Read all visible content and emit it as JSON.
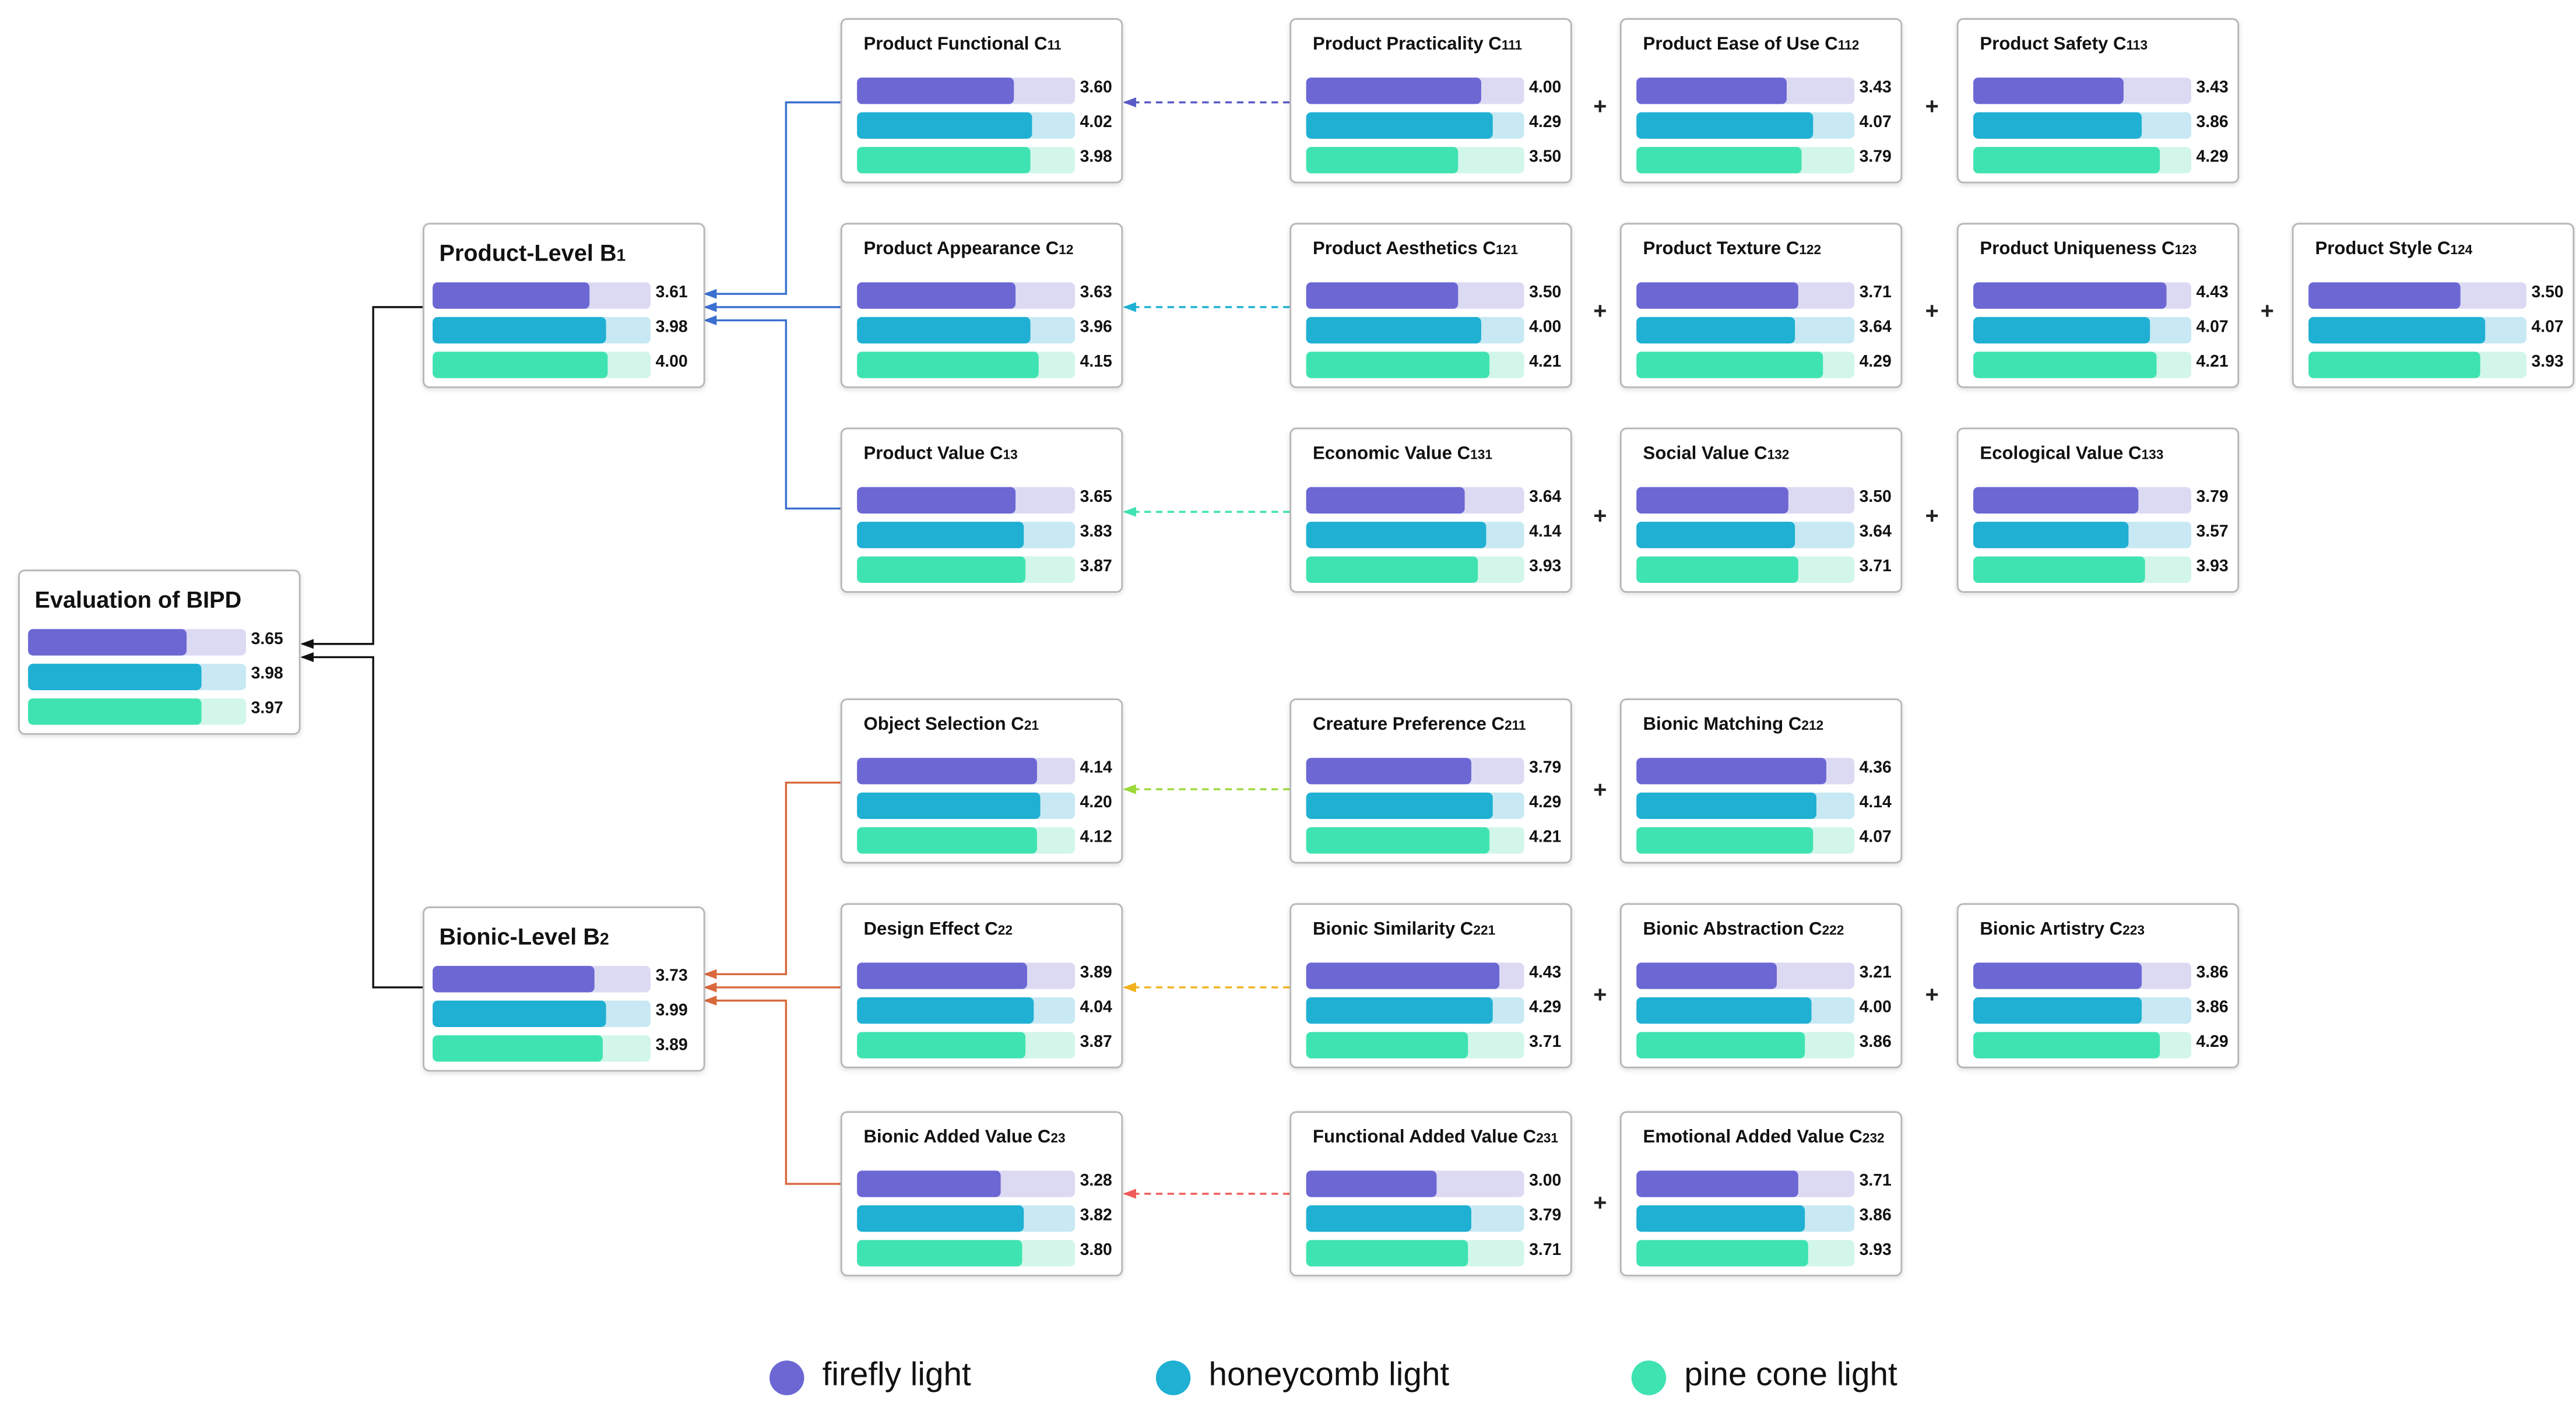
{
  "colors": {
    "firefly": "#6c67d3",
    "firefly_bg": "#dcdaf3",
    "honeycomb": "#1fb0d3",
    "honeycomb_bg": "#c8e9f3",
    "pinecone": "#3fe3b1",
    "pinecone_bg": "#d2f6ea",
    "blue_link": "#3b6fcf",
    "orange_link": "#d9683c",
    "black_link": "#111111",
    "arrow_c11": "#5a5ac8",
    "arrow_c12": "#1fb0d3",
    "arrow_c13": "#3fe3b1",
    "arrow_c21": "#9cd93a",
    "arrow_c22": "#f2b21c",
    "arrow_c23": "#ef5a5a"
  },
  "scale": {
    "max": 5.0
  },
  "legend": [
    {
      "key": "firefly",
      "label": "firefly light"
    },
    {
      "key": "honeycomb",
      "label": "honeycomb light"
    },
    {
      "key": "pinecone",
      "label": "pine cone light"
    }
  ],
  "nodes": {
    "A": {
      "name": "Evaluation of BIPD",
      "sub": "",
      "values": [
        3.65,
        3.98,
        3.97
      ]
    },
    "B1": {
      "name": "Product-Level B",
      "sub": "1",
      "values": [
        3.61,
        3.98,
        4.0
      ]
    },
    "B2": {
      "name": "Bionic-Level B",
      "sub": "2",
      "values": [
        3.73,
        3.99,
        3.89
      ]
    },
    "C11": {
      "name": "Product Functional C",
      "sub": "11",
      "values": [
        3.6,
        4.02,
        3.98
      ]
    },
    "C12": {
      "name": "Product Appearance C",
      "sub": "12",
      "values": [
        3.63,
        3.96,
        4.15
      ]
    },
    "C13": {
      "name": "Product Value C",
      "sub": "13",
      "values": [
        3.65,
        3.83,
        3.87
      ]
    },
    "C21": {
      "name": "Object Selection C",
      "sub": "21",
      "values": [
        4.14,
        4.2,
        4.12
      ]
    },
    "C22": {
      "name": "Design Effect C",
      "sub": "22",
      "values": [
        3.89,
        4.04,
        3.87
      ]
    },
    "C23": {
      "name": "Bionic Added Value C",
      "sub": "23",
      "values": [
        3.28,
        3.82,
        3.8
      ]
    },
    "C111": {
      "name": "Product Practicality C",
      "sub": "111",
      "values": [
        4.0,
        4.29,
        3.5
      ]
    },
    "C112": {
      "name": "Product Ease of Use C",
      "sub": "112",
      "values": [
        3.43,
        4.07,
        3.79
      ]
    },
    "C113": {
      "name": "Product Safety C",
      "sub": "113",
      "values": [
        3.43,
        3.86,
        4.29
      ]
    },
    "C121": {
      "name": "Product Aesthetics C",
      "sub": "121",
      "values": [
        3.5,
        4.0,
        4.21
      ]
    },
    "C122": {
      "name": "Product Texture C",
      "sub": "122",
      "values": [
        3.71,
        3.64,
        4.29
      ]
    },
    "C123": {
      "name": "Product Uniqueness C",
      "sub": "123",
      "values": [
        4.43,
        4.07,
        4.21
      ]
    },
    "C124": {
      "name": "Product Style C",
      "sub": "124",
      "values": [
        3.5,
        4.07,
        3.93
      ]
    },
    "C131": {
      "name": "Economic Value C",
      "sub": "131",
      "values": [
        3.64,
        4.14,
        3.93
      ]
    },
    "C132": {
      "name": "Social Value C",
      "sub": "132",
      "values": [
        3.5,
        3.64,
        3.71
      ]
    },
    "C133": {
      "name": "Ecological Value C",
      "sub": "133",
      "values": [
        3.79,
        3.57,
        3.93
      ]
    },
    "C211": {
      "name": "Creature Preference C",
      "sub": "211",
      "values": [
        3.79,
        4.29,
        4.21
      ]
    },
    "C212": {
      "name": "Bionic Matching C",
      "sub": "212",
      "values": [
        4.36,
        4.14,
        4.07
      ]
    },
    "C221": {
      "name": "Bionic Similarity C",
      "sub": "221",
      "values": [
        4.43,
        4.29,
        3.71
      ]
    },
    "C222": {
      "name": "Bionic Abstraction C",
      "sub": "222",
      "values": [
        3.21,
        4.0,
        3.86
      ]
    },
    "C223": {
      "name": "Bionic Artistry C",
      "sub": "223",
      "values": [
        3.86,
        3.86,
        4.29
      ]
    },
    "C231": {
      "name": "Functional Added Value C",
      "sub": "231",
      "values": [
        3.0,
        3.79,
        3.71
      ]
    },
    "C232": {
      "name": "Emotional Added Value C",
      "sub": "232",
      "values": [
        3.71,
        3.86,
        3.93
      ]
    }
  },
  "plus_sign": "+"
}
